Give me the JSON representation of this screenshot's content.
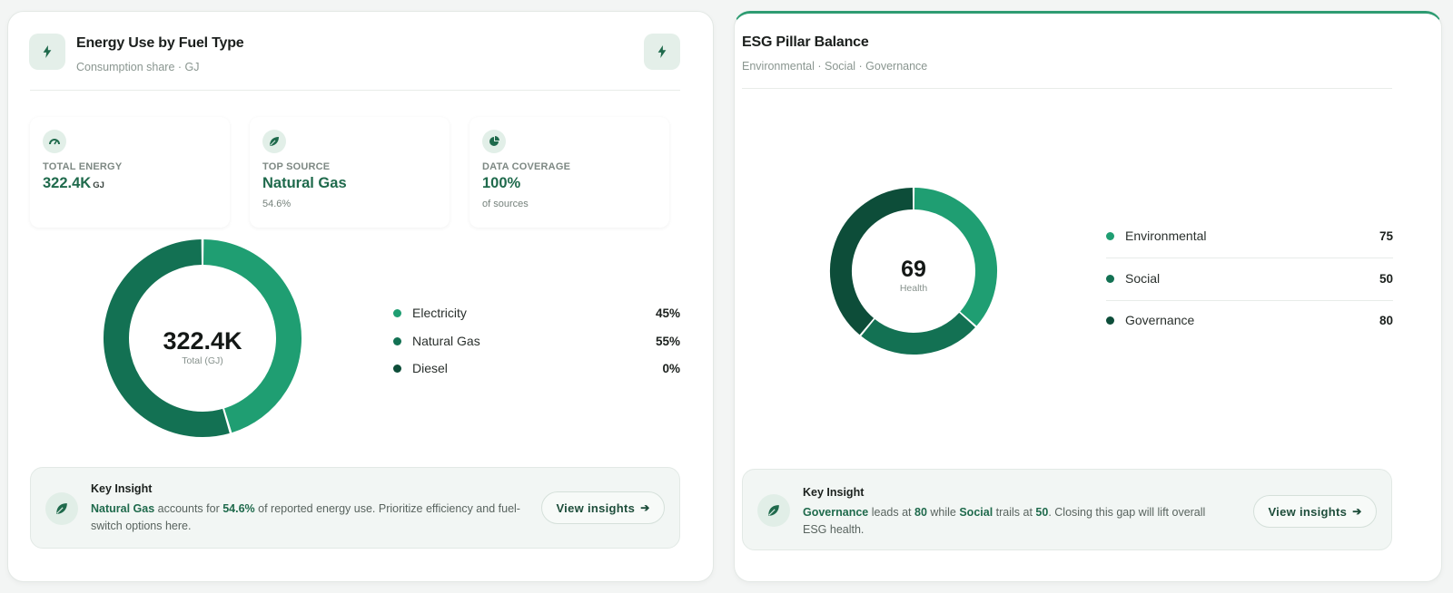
{
  "colors": {
    "accent": "#1f6a4c",
    "teal": "#1f9e72",
    "green": "#137153",
    "dark": "#0d4d39"
  },
  "energy_card": {
    "title": "Energy Use by Fuel Type",
    "subtitle": "Consumption share · GJ",
    "header_icon": "lightning-icon",
    "action_icon": "lightning-icon",
    "kpis": [
      {
        "icon": "gauge-icon",
        "label": "TOTAL ENERGY",
        "value": "322.4K",
        "unit": "GJ",
        "note": ""
      },
      {
        "icon": "leaf-icon",
        "label": "TOP SOURCE",
        "value": "Natural Gas",
        "unit": "",
        "note": "54.6%"
      },
      {
        "icon": "pie-icon",
        "label": "DATA COVERAGE",
        "value": "100%",
        "unit": "",
        "note": "of sources"
      }
    ],
    "center_value": "322.4K",
    "center_caption": "Total (GJ)",
    "legend": [
      {
        "label": "Electricity",
        "value": "45%",
        "color": "#1f9e72"
      },
      {
        "label": "Natural Gas",
        "value": "55%",
        "color": "#137153"
      },
      {
        "label": "Diesel",
        "value": "0%",
        "color": "#0d4d39"
      }
    ],
    "insight": {
      "title": "Key Insight",
      "parts": [
        {
          "text": "Natural Gas",
          "bold": true
        },
        {
          "text": " accounts for ",
          "bold": false
        },
        {
          "text": "54.6%",
          "bold": true
        },
        {
          "text": " of reported energy use. Prioritize efficiency and fuel-switch options here.",
          "bold": false
        }
      ],
      "button": "View insights",
      "icon": "leaf-icon"
    }
  },
  "esg_card": {
    "title": "ESG Pillar Balance",
    "subtitle": "Environmental · Social · Governance",
    "center_value": "69",
    "center_caption": "Health",
    "legend": [
      {
        "label": "Environmental",
        "value": "75",
        "color": "#1f9e72"
      },
      {
        "label": "Social",
        "value": "50",
        "color": "#137153"
      },
      {
        "label": "Governance",
        "value": "80",
        "color": "#0d4d39"
      }
    ],
    "insight": {
      "title": "Key Insight",
      "parts": [
        {
          "text": "Governance",
          "bold": true
        },
        {
          "text": " leads at ",
          "bold": false
        },
        {
          "text": "80",
          "bold": true
        },
        {
          "text": " while ",
          "bold": false
        },
        {
          "text": "Social",
          "bold": true
        },
        {
          "text": " trails at ",
          "bold": false
        },
        {
          "text": "50",
          "bold": true
        },
        {
          "text": ". Closing this gap will lift overall ESG health.",
          "bold": false
        }
      ],
      "button": "View insights",
      "icon": "leaf-icon"
    }
  },
  "chart_data": [
    {
      "type": "pie",
      "variant": "donut",
      "title": "Energy Use by Fuel Type",
      "categories": [
        "Electricity",
        "Natural Gas",
        "Diesel"
      ],
      "values": [
        45.4,
        54.6,
        0
      ],
      "colors": [
        "#1f9e72",
        "#137153",
        "#0d4d39"
      ],
      "center_label": "322.4K",
      "legend_position": "right"
    },
    {
      "type": "pie",
      "variant": "donut",
      "title": "ESG Pillar Balance",
      "categories": [
        "Environmental",
        "Social",
        "Governance"
      ],
      "values": [
        75,
        50,
        80
      ],
      "colors": [
        "#1f9e72",
        "#137153",
        "#0d4d39"
      ],
      "center_label": "69",
      "legend_position": "right"
    }
  ]
}
